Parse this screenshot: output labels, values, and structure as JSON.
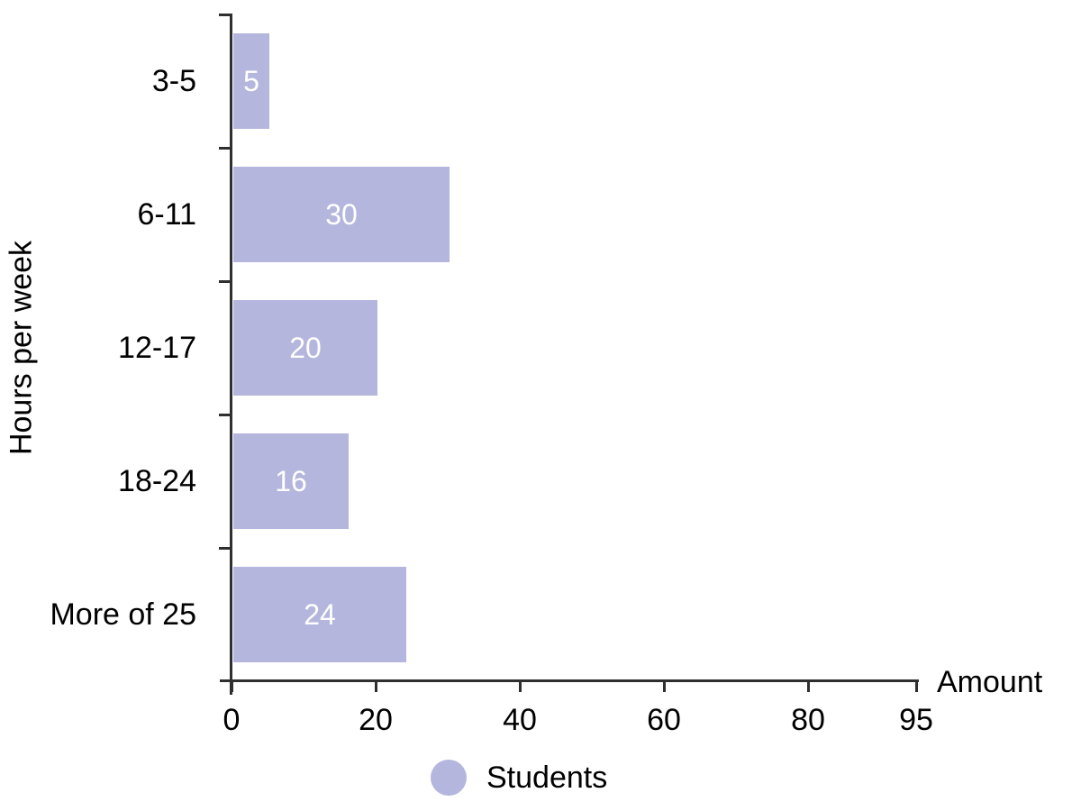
{
  "chart_data": {
    "type": "bar",
    "orientation": "horizontal",
    "title": "",
    "categories": [
      "3-5",
      "6-11",
      "12-17",
      "18-24",
      "More of 25"
    ],
    "series": [
      {
        "name": "Students",
        "values": [
          5,
          30,
          20,
          16,
          24
        ]
      }
    ],
    "value_labels": [
      "5",
      "30",
      "20",
      "16",
      "24"
    ],
    "xlabel": "Amount",
    "ylabel": "Hours per week",
    "x_ticks": [
      0,
      20,
      40,
      60,
      80,
      95
    ],
    "x_tick_labels": [
      "0",
      "20",
      "40",
      "60",
      "80",
      "95"
    ],
    "xlim": [
      0,
      95
    ],
    "grid": false,
    "legend_position": "bottom",
    "colors": {
      "bar_fill": "#b4b6de",
      "axis_line": "#2f2f2f",
      "text": "#000000",
      "value_label_text": "#ffffff"
    }
  },
  "legend": {
    "items": [
      {
        "label": "Students",
        "marker": "circle-icon",
        "color": "#b4b6de"
      }
    ]
  }
}
